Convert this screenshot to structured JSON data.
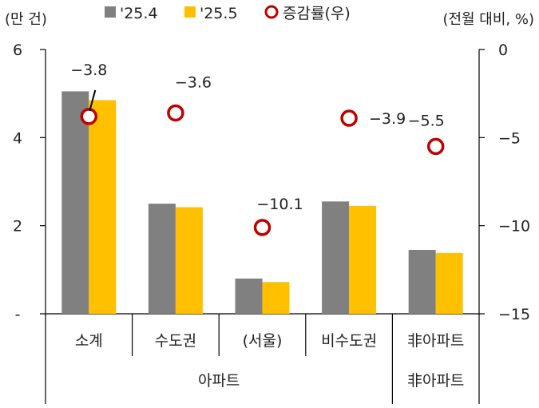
{
  "chart_data": {
    "type": "bar",
    "left_unit": "(만 건)",
    "right_unit": "(전월 대비, %)",
    "categories": [
      "소계",
      "수도권",
      "(서울)",
      "비수도권",
      "非아파트"
    ],
    "groups": [
      {
        "label": "아파트",
        "categories": [
          "소계",
          "수도권",
          "(서울)",
          "비수도권"
        ]
      },
      {
        "label": "非아파트",
        "categories": [
          "非아파트"
        ]
      }
    ],
    "series": [
      {
        "name": "'25.4",
        "type": "bar",
        "axis": "left",
        "color": "#808080",
        "values": [
          5.05,
          2.5,
          0.8,
          2.55,
          1.45
        ]
      },
      {
        "name": "'25.5",
        "type": "bar",
        "axis": "left",
        "color": "#FFC000",
        "values": [
          4.85,
          2.42,
          0.72,
          2.45,
          1.38
        ]
      },
      {
        "name": "증감률(우)",
        "type": "scatter",
        "axis": "right",
        "color": "#C00000",
        "values": [
          -3.8,
          -3.6,
          -10.1,
          -3.9,
          -5.5
        ],
        "labels": [
          "−3.8",
          "−3.6",
          "−10.1",
          "−3.9",
          "−5.5"
        ]
      }
    ],
    "left_axis": {
      "ylim": [
        0,
        6
      ],
      "ticks": [
        0,
        2,
        4,
        6
      ],
      "tick_labels": [
        "-",
        "2",
        "4",
        "6"
      ]
    },
    "right_axis": {
      "ylim": [
        -15,
        0
      ],
      "ticks": [
        0,
        -5,
        -10,
        -15
      ],
      "tick_labels": [
        "0",
        "−5",
        "−10",
        "−15"
      ]
    },
    "legend_position": "top",
    "grid": false
  }
}
